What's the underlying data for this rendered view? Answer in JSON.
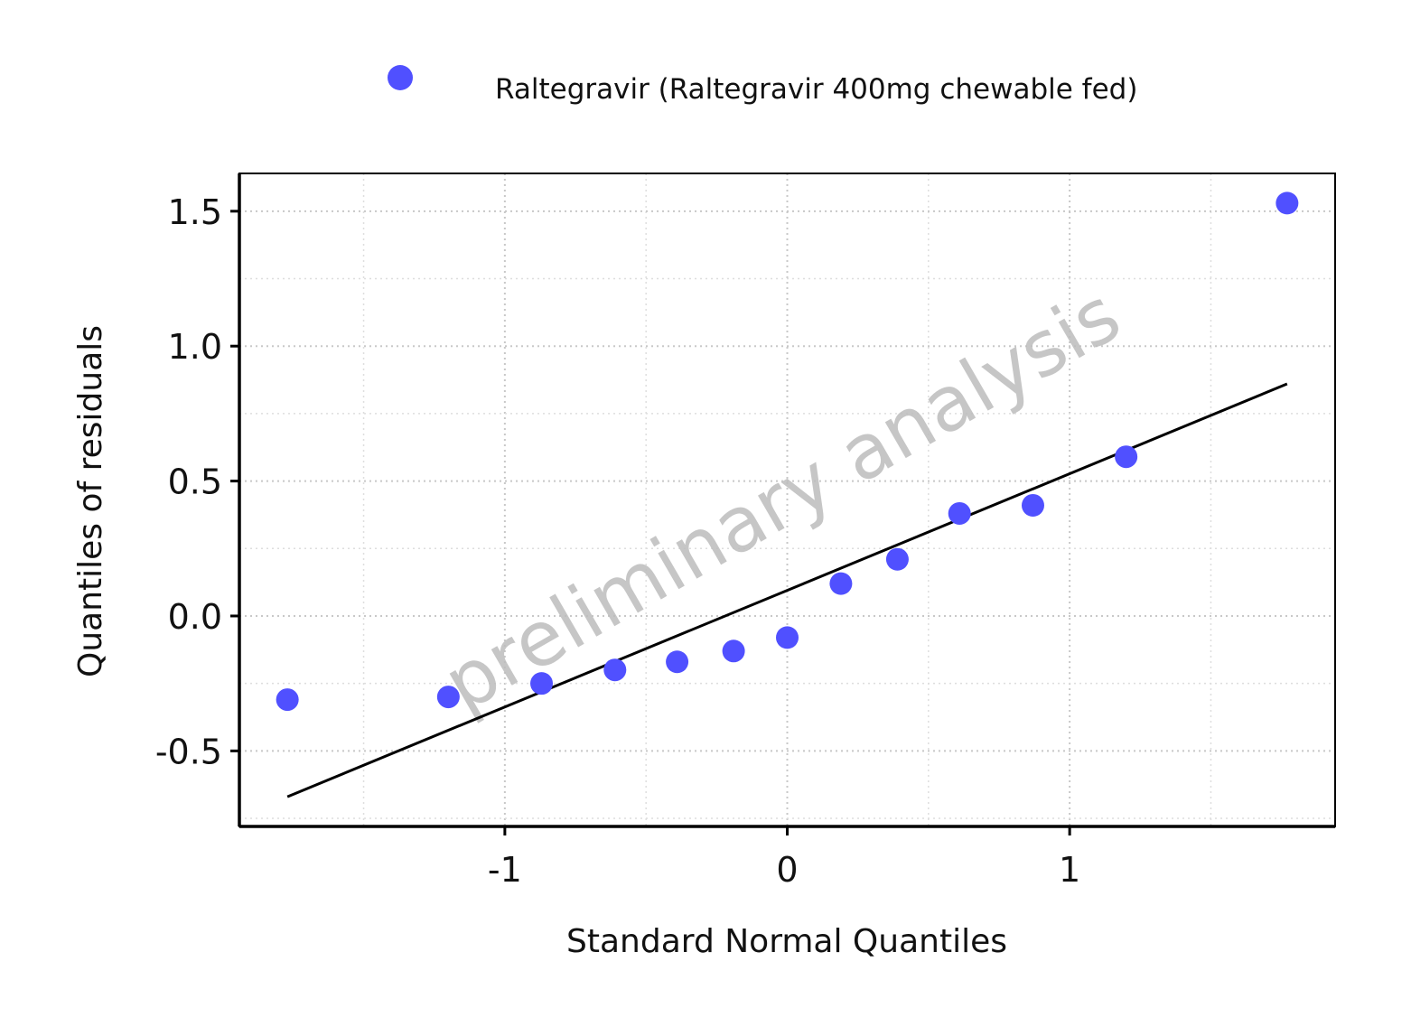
{
  "chart_data": {
    "type": "scatter",
    "title": "",
    "xlabel": "Standard Normal Quantiles",
    "ylabel": "Quantiles of residuals",
    "xlim": [
      -1.94,
      1.94
    ],
    "ylim": [
      -0.78,
      1.64
    ],
    "x_ticks": [
      -1,
      0,
      1
    ],
    "x_tick_labels": [
      "-1",
      "0",
      "1"
    ],
    "y_ticks": [
      -0.5,
      0.0,
      0.5,
      1.0,
      1.5
    ],
    "y_tick_labels": [
      "-0.5",
      "0.0",
      "0.5",
      "1.0",
      "1.5"
    ],
    "grid": true,
    "legend_position": "top",
    "series": [
      {
        "name": "Raltegravir (Raltegravir 400mg chewable fed)",
        "color": "#5050ff",
        "points": [
          {
            "x": -1.77,
            "y": -0.31
          },
          {
            "x": -1.2,
            "y": -0.3
          },
          {
            "x": -0.87,
            "y": -0.25
          },
          {
            "x": -0.61,
            "y": -0.2
          },
          {
            "x": -0.39,
            "y": -0.17
          },
          {
            "x": -0.19,
            "y": -0.13
          },
          {
            "x": 0.0,
            "y": -0.08
          },
          {
            "x": 0.19,
            "y": 0.12
          },
          {
            "x": 0.39,
            "y": 0.21
          },
          {
            "x": 0.61,
            "y": 0.38
          },
          {
            "x": 0.87,
            "y": 0.41
          },
          {
            "x": 1.2,
            "y": 0.59
          },
          {
            "x": 1.77,
            "y": 1.53
          }
        ]
      }
    ],
    "reference_line": {
      "color": "#000000",
      "points": [
        {
          "x": -1.77,
          "y": -0.67
        },
        {
          "x": 1.77,
          "y": 0.86
        }
      ]
    },
    "watermark": "preliminary analysis"
  }
}
